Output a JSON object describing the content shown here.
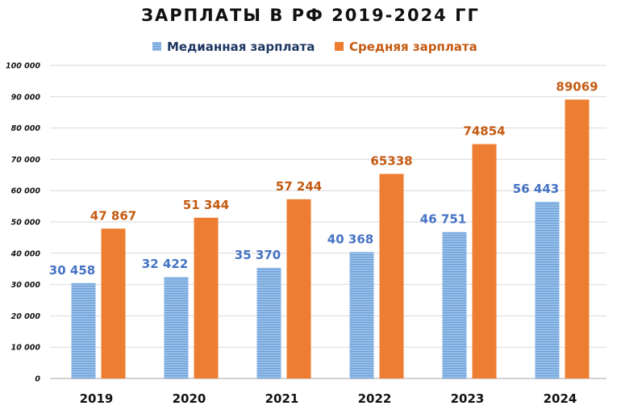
{
  "chart_data": {
    "type": "bar",
    "title": "ЗАРПЛАТЫ В РФ 2019-2024 ГГ",
    "categories": [
      "2019",
      "2020",
      "2021",
      "2022",
      "2023",
      "2024"
    ],
    "series": [
      {
        "name": "Медианная зарплата",
        "values": [
          30458,
          32422,
          35370,
          40368,
          46751,
          56443
        ],
        "labels": [
          "30 458",
          "32 422",
          "35 370",
          "40 368",
          "46 751",
          "56 443"
        ],
        "color": "#6a9fd8",
        "label_color": "#4472c4"
      },
      {
        "name": "Средняя зарплата",
        "values": [
          47867,
          51344,
          57244,
          65338,
          74854,
          89069
        ],
        "labels": [
          "47 867",
          "51 344",
          "57 244",
          "65338",
          "74854",
          "89069"
        ],
        "color": "#ed7d31",
        "label_color": "#c55a11"
      }
    ],
    "ylim": [
      0,
      100000
    ],
    "yticks": [
      "0",
      "10 000",
      "20 000",
      "30 000",
      "40 000",
      "50 000",
      "60 000",
      "70 000",
      "80 000",
      "90 000",
      "100 000"
    ],
    "grid": true,
    "legend_position": "top-center"
  }
}
